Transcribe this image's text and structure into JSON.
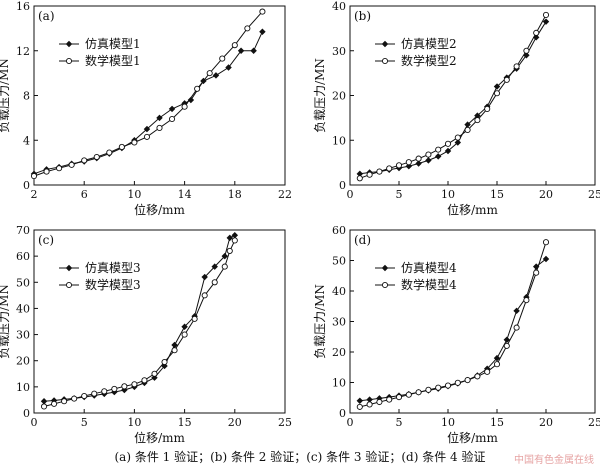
{
  "caption": "(a) 条件 1 验证；(b) 条件 2 验证；(c) 条件 3 验证；(d) 条件 4 验证",
  "watermark": "中国有色金属在线",
  "colors": {
    "axis": "#111111",
    "line": "#111111",
    "marker_fill_open": "#ffffff"
  },
  "chart_data": [
    {
      "type": "line",
      "panel_label": "(a)",
      "xlabel": "位移/mm",
      "ylabel": "负载压力/MN",
      "xlim": [
        2,
        22
      ],
      "ylim": [
        0,
        16
      ],
      "xticks": [
        2,
        6,
        10,
        14,
        18,
        22
      ],
      "yticks": [
        0,
        4,
        8,
        12,
        16
      ],
      "legend_position": "top-left",
      "series": [
        {
          "name": "仿真模型1",
          "marker": "filled-diamond",
          "x": [
            2,
            3,
            4,
            5,
            6,
            7,
            8,
            9,
            10,
            11,
            12,
            13,
            14,
            14.5,
            15.5,
            16.5,
            17.5,
            18.5,
            19.5,
            20.2
          ],
          "y": [
            1.0,
            1.4,
            1.6,
            1.9,
            2.1,
            2.4,
            2.8,
            3.3,
            4.0,
            5.0,
            6.0,
            6.8,
            7.3,
            7.6,
            9.3,
            9.8,
            10.5,
            12.0,
            12.0,
            13.7
          ]
        },
        {
          "name": "数学模型1",
          "marker": "open-circle",
          "x": [
            2,
            3,
            4,
            5,
            6,
            7,
            8,
            9,
            10,
            11,
            12,
            13,
            14,
            15,
            16,
            17,
            18,
            19,
            20.2
          ],
          "y": [
            0.8,
            1.2,
            1.5,
            1.8,
            2.2,
            2.5,
            2.9,
            3.4,
            3.8,
            4.3,
            5.1,
            5.9,
            7.0,
            8.6,
            10.0,
            11.3,
            12.5,
            14.0,
            15.5
          ]
        }
      ]
    },
    {
      "type": "line",
      "panel_label": "(b)",
      "xlabel": "位移/mm",
      "ylabel": "负载压力/MN",
      "xlim": [
        0,
        25
      ],
      "ylim": [
        0,
        40
      ],
      "xticks": [
        0,
        5,
        10,
        15,
        20,
        25
      ],
      "yticks": [
        0,
        10,
        20,
        30,
        40
      ],
      "legend_position": "top-left",
      "series": [
        {
          "name": "仿真模型2",
          "marker": "filled-diamond",
          "x": [
            1,
            2,
            3,
            4,
            5,
            6,
            7,
            8,
            9,
            10,
            11,
            12,
            13,
            14,
            15,
            16,
            17,
            18,
            19,
            20
          ],
          "y": [
            2.5,
            2.8,
            3.0,
            3.4,
            3.8,
            4.2,
            4.8,
            5.5,
            6.4,
            7.6,
            9.5,
            13.5,
            15.5,
            17.5,
            22.0,
            24.0,
            26.0,
            29.0,
            33.0,
            36.5
          ]
        },
        {
          "name": "数学模型2",
          "marker": "open-circle",
          "x": [
            1,
            2,
            3,
            4,
            5,
            6,
            7,
            8,
            9,
            10,
            11,
            12,
            13,
            14,
            15,
            16,
            17,
            18,
            19,
            20
          ],
          "y": [
            1.5,
            2.3,
            3.0,
            3.7,
            4.4,
            5.1,
            5.9,
            6.8,
            7.9,
            9.2,
            10.6,
            12.3,
            14.5,
            17.0,
            20.5,
            23.5,
            26.5,
            30.0,
            34.0,
            38.0
          ]
        }
      ]
    },
    {
      "type": "line",
      "panel_label": "(c)",
      "xlabel": "位移/mm",
      "ylabel": "负载压力/MN",
      "xlim": [
        0,
        25
      ],
      "ylim": [
        0,
        70
      ],
      "xticks": [
        0,
        5,
        10,
        15,
        20,
        25
      ],
      "yticks": [
        0,
        10,
        20,
        30,
        40,
        50,
        60,
        70
      ],
      "legend_position": "top-left",
      "series": [
        {
          "name": "仿真模型3",
          "marker": "filled-diamond",
          "x": [
            1,
            2,
            3,
            4,
            5,
            6,
            7,
            8,
            9,
            10,
            11,
            12,
            13,
            14,
            15,
            16,
            17,
            18,
            19,
            19.5,
            20
          ],
          "y": [
            4.5,
            4.8,
            5.2,
            5.6,
            6.1,
            6.7,
            7.3,
            8.0,
            8.8,
            10.0,
            11.5,
            13.5,
            18.0,
            26.0,
            33.0,
            37.0,
            52.0,
            56.0,
            60.0,
            67.0,
            68.0
          ]
        },
        {
          "name": "数学模型3",
          "marker": "open-circle",
          "x": [
            1,
            2,
            3,
            4,
            5,
            6,
            7,
            8,
            9,
            10,
            11,
            12,
            13,
            14,
            15,
            16,
            17,
            18,
            19,
            19.5,
            20
          ],
          "y": [
            2.5,
            3.5,
            4.5,
            5.5,
            6.5,
            7.4,
            8.3,
            9.2,
            10.2,
            11.0,
            12.5,
            15.0,
            19.5,
            24.0,
            30.0,
            36.0,
            45.0,
            50.0,
            56.0,
            62.0,
            66.0
          ]
        }
      ]
    },
    {
      "type": "line",
      "panel_label": "(d)",
      "xlabel": "位移/mm",
      "ylabel": "负载压力/MN",
      "xlim": [
        0,
        25
      ],
      "ylim": [
        0,
        60
      ],
      "xticks": [
        0,
        5,
        10,
        15,
        20,
        25
      ],
      "yticks": [
        0,
        10,
        20,
        30,
        40,
        50,
        60
      ],
      "legend_position": "top-left",
      "series": [
        {
          "name": "仿真模型4",
          "marker": "filled-diamond",
          "x": [
            1,
            2,
            3,
            4,
            5,
            6,
            7,
            8,
            9,
            10,
            11,
            12,
            13,
            14,
            15,
            16,
            17,
            18,
            19,
            20
          ],
          "y": [
            4.0,
            4.4,
            4.8,
            5.2,
            5.7,
            6.2,
            6.8,
            7.4,
            8.0,
            8.8,
            9.7,
            10.8,
            12.3,
            14.5,
            18.0,
            24.0,
            33.5,
            38.0,
            48.0,
            50.5
          ]
        },
        {
          "name": "数学模型4",
          "marker": "open-circle",
          "x": [
            1,
            2,
            3,
            4,
            5,
            6,
            7,
            8,
            9,
            10,
            11,
            12,
            13,
            14,
            15,
            16,
            17,
            18,
            19,
            20
          ],
          "y": [
            2.0,
            2.8,
            3.6,
            4.4,
            5.2,
            6.0,
            6.8,
            7.6,
            8.3,
            9.0,
            9.9,
            10.8,
            12.0,
            13.5,
            16.0,
            22.0,
            28.0,
            37.0,
            46.0,
            56.0
          ]
        }
      ]
    }
  ]
}
